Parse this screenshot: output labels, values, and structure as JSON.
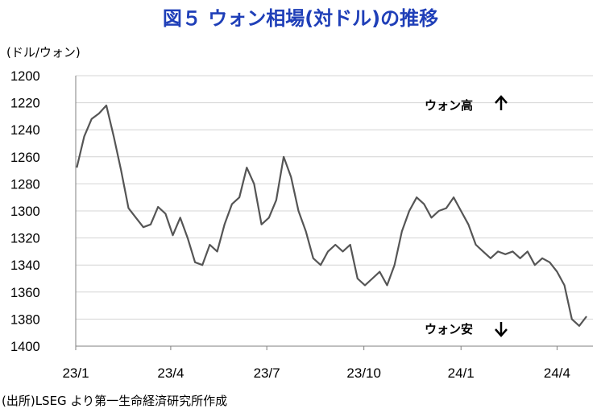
{
  "chart_data": {
    "type": "line",
    "title": "図５ ウォン相場(対ドル)の推移",
    "unit_label": "(ドル/ウォン)",
    "y_inverted": true,
    "ylim": [
      1200,
      1400
    ],
    "y_ticks": [
      "1200",
      "1220",
      "1240",
      "1260",
      "1280",
      "1300",
      "1320",
      "1340",
      "1360",
      "1380",
      "1400"
    ],
    "x_ticks": [
      "23/1",
      "23/4",
      "23/7",
      "23/10",
      "24/1",
      "24/4"
    ],
    "grid": "horizontal",
    "series": [
      {
        "color": "#555555",
        "x": [
          "2023-01-02",
          "2023-01-09",
          "2023-01-16",
          "2023-01-23",
          "2023-01-30",
          "2023-02-06",
          "2023-02-13",
          "2023-02-20",
          "2023-02-27",
          "2023-03-06",
          "2023-03-13",
          "2023-03-20",
          "2023-03-27",
          "2023-04-03",
          "2023-04-10",
          "2023-04-17",
          "2023-04-24",
          "2023-05-01",
          "2023-05-08",
          "2023-05-15",
          "2023-05-22",
          "2023-05-29",
          "2023-06-05",
          "2023-06-12",
          "2023-06-19",
          "2023-06-26",
          "2023-07-03",
          "2023-07-10",
          "2023-07-17",
          "2023-07-24",
          "2023-07-31",
          "2023-08-07",
          "2023-08-14",
          "2023-08-21",
          "2023-08-28",
          "2023-09-04",
          "2023-09-11",
          "2023-09-18",
          "2023-09-25",
          "2023-10-02",
          "2023-10-09",
          "2023-10-16",
          "2023-10-23",
          "2023-10-30",
          "2023-11-06",
          "2023-11-13",
          "2023-11-20",
          "2023-11-27",
          "2023-12-04",
          "2023-12-11",
          "2023-12-18",
          "2023-12-25",
          "2024-01-01",
          "2024-01-08",
          "2024-01-15",
          "2024-01-22",
          "2024-01-29",
          "2024-02-05",
          "2024-02-12",
          "2024-02-19",
          "2024-02-26",
          "2024-03-04",
          "2024-03-11",
          "2024-03-18",
          "2024-03-25",
          "2024-04-01",
          "2024-04-08",
          "2024-04-15",
          "2024-04-22",
          "2024-04-29"
        ],
        "values": [
          1268,
          1245,
          1232,
          1228,
          1222,
          1245,
          1270,
          1298,
          1305,
          1312,
          1310,
          1297,
          1302,
          1318,
          1305,
          1320,
          1338,
          1340,
          1325,
          1330,
          1310,
          1295,
          1290,
          1268,
          1280,
          1310,
          1305,
          1292,
          1260,
          1275,
          1300,
          1315,
          1335,
          1340,
          1330,
          1325,
          1330,
          1325,
          1350,
          1355,
          1350,
          1345,
          1355,
          1340,
          1315,
          1300,
          1290,
          1295,
          1305,
          1300,
          1298,
          1290,
          1300,
          1310,
          1325,
          1330,
          1335,
          1330,
          1332,
          1330,
          1335,
          1330,
          1340,
          1335,
          1338,
          1345,
          1355,
          1380,
          1385,
          1378
        ]
      }
    ],
    "annotations": [
      "ウォン高",
      "ウォン安"
    ],
    "source": "(出所)LSEG より第一生命経済研究所作成"
  }
}
